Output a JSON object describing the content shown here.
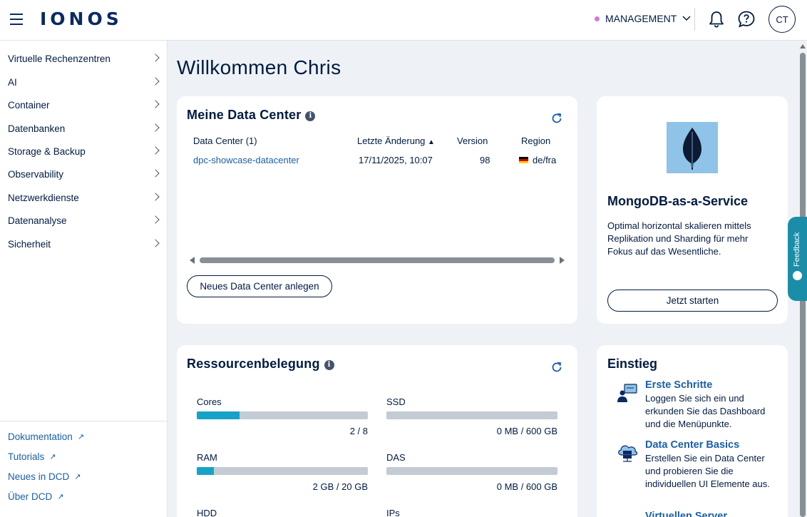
{
  "header": {
    "logo": "IONOS",
    "management_label": "MANAGEMENT",
    "avatar_initials": "CT",
    "accent_color": "#0b2a63"
  },
  "sidebar": {
    "items": [
      {
        "label": "Virtuelle Rechenzentren"
      },
      {
        "label": "AI"
      },
      {
        "label": "Container"
      },
      {
        "label": "Datenbanken"
      },
      {
        "label": "Storage & Backup"
      },
      {
        "label": "Observability"
      },
      {
        "label": "Netzwerkdienste"
      },
      {
        "label": "Datenanalyse"
      },
      {
        "label": "Sicherheit"
      }
    ],
    "footer_links": [
      {
        "label": "Dokumentation"
      },
      {
        "label": "Tutorials"
      },
      {
        "label": "Neues in DCD"
      },
      {
        "label": "Über DCD"
      }
    ]
  },
  "main": {
    "welcome": "Willkommen Chris",
    "datacenters": {
      "title": "Meine Data Center",
      "columns": [
        "Data Center (1)",
        "Letzte Änderung",
        "Version",
        "Region"
      ],
      "rows": [
        {
          "name": "dpc-showcase-datacenter",
          "modified": "17/11/2025, 10:07",
          "version": "98",
          "region": "de/fra"
        }
      ],
      "new_button": "Neues Data Center anlegen"
    },
    "promo": {
      "title": "MongoDB-as-a-Service",
      "text": "Optimal horizontal skalieren mittels Replikation und Sharding für mehr Fokus auf das Wesentliche.",
      "button": "Jetzt starten"
    },
    "resources": {
      "title": "Ressourcenbelegung",
      "items": [
        {
          "label": "Cores",
          "value": "2 / 8",
          "fraction": 0.25
        },
        {
          "label": "SSD",
          "value": "0 MB / 600 GB",
          "fraction": 0
        },
        {
          "label": "RAM",
          "value": "2 GB / 20 GB",
          "fraction": 0.1
        },
        {
          "label": "DAS",
          "value": "0 MB / 600 GB",
          "fraction": 0
        },
        {
          "label": "HDD",
          "value": "",
          "fraction": 0
        },
        {
          "label": "IPs",
          "value": "",
          "fraction": 0
        }
      ]
    },
    "einstieg": {
      "title": "Einstieg",
      "guides": [
        {
          "title": "Erste Schritte",
          "text": "Loggen Sie sich ein und erkunden Sie das Dashboard und die Menüpunkte."
        },
        {
          "title": "Data Center Basics",
          "text": "Erstellen Sie ein Data Center und probieren Sie die individuellen UI Elemente aus."
        },
        {
          "title": "Virtuellen Server"
        }
      ]
    }
  },
  "feedback_label": "Feedback"
}
